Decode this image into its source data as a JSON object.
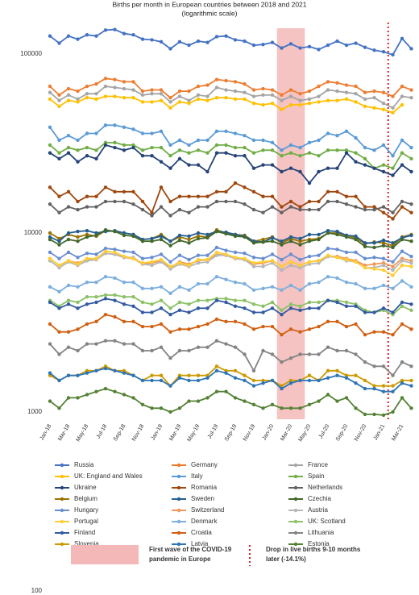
{
  "chart_data": {
    "type": "line",
    "title": "Births per month in European countries between 2018 and 2021",
    "subtitle": "(logarithmic scale)",
    "log_scale": true,
    "ylim": [
      100,
      140000
    ],
    "yticks": [
      100,
      1000,
      10000,
      100000
    ],
    "categories": [
      "Jan-18",
      null,
      "Mar-18",
      null,
      "May-18",
      null,
      "Jul-18",
      null,
      "Sep-18",
      null,
      "Nov-18",
      null,
      "Jan-19",
      null,
      "Mar-19",
      null,
      "May-19",
      null,
      "Jul-19",
      null,
      "Sep-19",
      null,
      "Nov-19",
      null,
      "Jan-20",
      null,
      "Mar-20",
      null,
      "May-20",
      null,
      "Jul-20",
      null,
      "Sep-20",
      null,
      "Nov-20",
      null,
      "Jan-21",
      null,
      "Mar-21",
      null
    ],
    "highlight_label": [
      "First wave of the COVID-19",
      "pandemic in Europe"
    ],
    "marker_label": [
      "Drop in live births 9-10 months",
      "later (-14.1%)"
    ],
    "highlight_color": "#f4b8b8",
    "marker_color": "#d62020",
    "series": [
      {
        "name": "Russia",
        "color": "#4472c4",
        "values": [
          126000,
          115000,
          126000,
          121000,
          128000,
          126000,
          136000,
          137000,
          130000,
          128000,
          121000,
          120000,
          117000,
          107000,
          117000,
          112000,
          118000,
          116000,
          125000,
          126000,
          120000,
          118000,
          112000,
          113000,
          116000,
          108000,
          114000,
          108000,
          110000,
          106000,
          112000,
          118000,
          112000,
          115000,
          109000,
          105000,
          103000,
          99000,
          122000,
          107000
        ]
      },
      {
        "name": "Germany",
        "color": "#ed7d31",
        "values": [
          66000,
          59000,
          64000,
          62000,
          66000,
          68000,
          73000,
          72000,
          70000,
          70000,
          62000,
          63000,
          63000,
          57000,
          62000,
          62000,
          66000,
          67000,
          72000,
          71000,
          70000,
          68000,
          63000,
          64000,
          63000,
          59000,
          63000,
          60000,
          62000,
          66000,
          70000,
          69000,
          67000,
          66000,
          61000,
          62000,
          61000,
          58000,
          66000,
          63000
        ]
      },
      {
        "name": "France",
        "color": "#a5a5a5",
        "values": [
          61000,
          55000,
          59000,
          56000,
          60000,
          60000,
          66000,
          65000,
          64000,
          63000,
          59000,
          60000,
          60000,
          54000,
          58000,
          55000,
          59000,
          58000,
          65000,
          63000,
          62000,
          61000,
          58000,
          59000,
          59000,
          55000,
          58000,
          55000,
          56000,
          58000,
          63000,
          62000,
          61000,
          60000,
          56000,
          57000,
          53000,
          50000,
          58000,
          57000
        ]
      },
      {
        "name": "UK: England and Wales",
        "color": "#ffc000",
        "values": [
          56000,
          51000,
          55000,
          54000,
          57000,
          56000,
          58000,
          58000,
          57000,
          57000,
          54000,
          54000,
          55000,
          50000,
          54000,
          53000,
          56000,
          55000,
          57000,
          57000,
          56000,
          56000,
          53000,
          52000,
          53000,
          49000,
          52000,
          52000,
          53000,
          54000,
          55000,
          55000,
          56000,
          54000,
          51000,
          50000,
          49000,
          47000,
          52000,
          null
        ]
      },
      {
        "name": "Italy",
        "color": "#5b9bd5",
        "values": [
          39000,
          33000,
          35000,
          33000,
          36000,
          36000,
          40000,
          40000,
          39000,
          38000,
          36000,
          36000,
          37000,
          31000,
          33000,
          31000,
          33000,
          33000,
          37000,
          37000,
          36000,
          35000,
          33000,
          33000,
          32000,
          29000,
          31000,
          30000,
          32000,
          33000,
          36000,
          35000,
          37000,
          34000,
          30000,
          29000,
          31000,
          27000,
          33000,
          30000
        ]
      },
      {
        "name": "Spain",
        "color": "#70ad47",
        "values": [
          31000,
          28000,
          30000,
          29000,
          30000,
          29000,
          32000,
          32000,
          31000,
          31000,
          29000,
          30000,
          30000,
          27000,
          29000,
          28000,
          29000,
          28000,
          31000,
          31000,
          30000,
          30000,
          28000,
          29000,
          29000,
          27000,
          28000,
          27000,
          28000,
          27000,
          29000,
          29000,
          29000,
          28000,
          26000,
          23000,
          24000,
          23000,
          28000,
          26000
        ]
      },
      {
        "name": "Ukraine",
        "color": "#264478",
        "values": [
          28000,
          26000,
          28000,
          25000,
          27000,
          26000,
          31000,
          30000,
          29000,
          30000,
          27000,
          27000,
          25000,
          23000,
          26000,
          24000,
          24000,
          22000,
          28000,
          28000,
          27000,
          27000,
          23000,
          24000,
          24000,
          22000,
          23000,
          22000,
          19000,
          22000,
          23000,
          23000,
          28000,
          25000,
          24000,
          23000,
          22000,
          21000,
          24000,
          22000
        ]
      },
      {
        "name": "Romania",
        "color": "#9e480e",
        "values": [
          18000,
          16000,
          17000,
          15000,
          16000,
          16000,
          18000,
          17000,
          17000,
          17000,
          15000,
          13000,
          18000,
          15000,
          16000,
          16000,
          16000,
          16000,
          17000,
          17000,
          19000,
          18000,
          17000,
          16000,
          16000,
          14000,
          15000,
          14000,
          15000,
          15000,
          17000,
          17000,
          16000,
          16000,
          14000,
          14000,
          13000,
          12000,
          14000,
          13000
        ]
      },
      {
        "name": "Netherlands",
        "color": "#636363",
        "values": [
          14500,
          13000,
          14000,
          13500,
          14000,
          14000,
          15000,
          15000,
          15000,
          14500,
          13500,
          12500,
          14000,
          12500,
          13500,
          13000,
          14000,
          14000,
          15000,
          15000,
          15000,
          14500,
          13500,
          13000,
          14000,
          13000,
          14000,
          13500,
          13500,
          13500,
          15000,
          15000,
          14500,
          14000,
          13500,
          13500,
          14000,
          13000,
          15000,
          14500
        ]
      },
      {
        "name": "Belgium",
        "color": "#997300",
        "values": [
          10000,
          9300,
          9800,
          9500,
          9800,
          9600,
          10300,
          10200,
          10000,
          9800,
          9200,
          9300,
          9800,
          9000,
          9500,
          9200,
          9600,
          9500,
          10400,
          10000,
          9800,
          9700,
          9000,
          9200,
          9500,
          8800,
          9300,
          9000,
          9200,
          9300,
          10000,
          10000,
          9700,
          9400,
          8700,
          8900,
          8800,
          8500,
          9500,
          9800
        ]
      },
      {
        "name": "Sweden",
        "color": "#255e91",
        "values": [
          9500,
          9000,
          10000,
          10200,
          10300,
          10000,
          10200,
          10300,
          10000,
          9800,
          9200,
          9300,
          9600,
          9000,
          9700,
          9600,
          10000,
          9800,
          10200,
          10100,
          9800,
          9600,
          9000,
          8900,
          9400,
          9000,
          9500,
          9300,
          9800,
          9800,
          10300,
          10200,
          9700,
          9600,
          8800,
          8800,
          9100,
          8800,
          9400,
          9700
        ]
      },
      {
        "name": "Czechia",
        "color": "#43682b",
        "values": [
          9200,
          8600,
          9200,
          9000,
          9500,
          9700,
          10400,
          10200,
          9700,
          9600,
          9000,
          9000,
          9200,
          8500,
          9100,
          8800,
          9300,
          9400,
          10200,
          9900,
          9600,
          9500,
          8800,
          8900,
          9000,
          8600,
          9000,
          8600,
          9000,
          9200,
          10000,
          9800,
          9500,
          9200,
          8400,
          8300,
          8500,
          8300,
          9200,
          9000
        ]
      },
      {
        "name": "Hungary",
        "color": "#698ed0",
        "values": [
          7800,
          7200,
          7800,
          7300,
          7700,
          7600,
          8200,
          8100,
          7900,
          7800,
          7200,
          7300,
          7600,
          6900,
          7500,
          7100,
          7500,
          7500,
          8300,
          8000,
          7800,
          7700,
          7300,
          7200,
          7600,
          7100,
          7600,
          7100,
          7400,
          7500,
          8200,
          8100,
          7800,
          7800,
          7200,
          7300,
          7200,
          6900,
          7900,
          7400
        ]
      },
      {
        "name": "Switzerland",
        "color": "#f1975a",
        "values": [
          7200,
          6600,
          7000,
          6800,
          7100,
          7200,
          7700,
          7600,
          7300,
          7200,
          6700,
          6800,
          7000,
          6400,
          6900,
          6700,
          7000,
          7100,
          7600,
          7500,
          7200,
          7100,
          6700,
          6800,
          7000,
          6500,
          6900,
          6600,
          6900,
          7000,
          7400,
          7400,
          7200,
          7000,
          6600,
          6700,
          6800,
          6500,
          7200,
          7000
        ]
      },
      {
        "name": "Austria",
        "color": "#b7b7b7",
        "values": [
          7000,
          6400,
          6900,
          6600,
          7000,
          7100,
          7700,
          7600,
          7300,
          7300,
          6700,
          6600,
          6900,
          6300,
          6700,
          6500,
          6800,
          6900,
          7500,
          7500,
          7200,
          7100,
          6500,
          6500,
          6800,
          6200,
          6600,
          6400,
          6700,
          6800,
          7400,
          7300,
          7000,
          6900,
          6400,
          6400,
          6600,
          6200,
          7000,
          6800
        ]
      },
      {
        "name": "Portugal",
        "color": "#ffcd33",
        "values": [
          7200,
          6600,
          7000,
          6700,
          7200,
          7200,
          7900,
          7800,
          7400,
          7200,
          6800,
          6900,
          7100,
          6500,
          6800,
          6600,
          7100,
          7100,
          7800,
          7600,
          7300,
          7200,
          6800,
          6900,
          7000,
          6500,
          6900,
          6600,
          6900,
          7000,
          7500,
          7300,
          7100,
          6900,
          6400,
          6300,
          6200,
          5800,
          6600,
          6500
        ]
      },
      {
        "name": "Denmark",
        "color": "#7cafdd",
        "values": [
          5000,
          4700,
          5100,
          5000,
          5300,
          5300,
          5700,
          5600,
          5300,
          5300,
          4900,
          4900,
          5000,
          4600,
          5000,
          4800,
          5200,
          5200,
          5700,
          5500,
          5300,
          5200,
          4800,
          4900,
          5000,
          4800,
          5100,
          4800,
          5200,
          5300,
          5700,
          5600,
          5300,
          5200,
          4900,
          4900,
          5100,
          4900,
          5400,
          5000
        ]
      },
      {
        "name": "UK: Scotland",
        "color": "#8cc168",
        "values": [
          4200,
          3900,
          4200,
          4100,
          4400,
          4400,
          4500,
          4500,
          4400,
          4400,
          4100,
          4000,
          4200,
          3800,
          4100,
          4000,
          4200,
          4200,
          4300,
          4300,
          4200,
          4200,
          4000,
          3900,
          4100,
          3700,
          4000,
          3900,
          4100,
          4100,
          4200,
          4200,
          4100,
          4000,
          3700,
          3600,
          3700,
          3500,
          3900,
          3700
        ]
      },
      {
        "name": "Finland",
        "color": "#335aa1",
        "values": [
          4100,
          3800,
          4000,
          3800,
          4000,
          4100,
          4300,
          4200,
          4000,
          3900,
          3600,
          3600,
          3800,
          3500,
          3700,
          3600,
          3800,
          3800,
          4200,
          4100,
          3900,
          3800,
          3600,
          3600,
          3800,
          3500,
          3800,
          3700,
          3800,
          3800,
          4200,
          4100,
          3900,
          3900,
          3600,
          3600,
          3800,
          3600,
          4100,
          4000
        ]
      },
      {
        "name": "Croatia",
        "color": "#d26012",
        "values": [
          3100,
          2800,
          2800,
          2900,
          3100,
          3200,
          3500,
          3400,
          3200,
          3200,
          3000,
          3000,
          3100,
          2800,
          2900,
          2900,
          3000,
          3100,
          3300,
          3200,
          3200,
          3100,
          2900,
          3000,
          3000,
          2700,
          2900,
          2800,
          2900,
          3000,
          3200,
          3200,
          3000,
          3100,
          2700,
          2800,
          2800,
          2700,
          3100,
          2900
        ]
      },
      {
        "name": "Lithuania",
        "color": "#848484",
        "values": [
          2400,
          2100,
          2300,
          2200,
          2400,
          2400,
          2500,
          2500,
          2400,
          2400,
          2200,
          2200,
          2300,
          2000,
          2200,
          2200,
          2300,
          2300,
          2500,
          2400,
          2300,
          2100,
          1700,
          2200,
          2100,
          1900,
          2000,
          2100,
          2100,
          2100,
          2300,
          2200,
          2200,
          2100,
          1900,
          1800,
          1800,
          1600,
          1900,
          1800
        ]
      },
      {
        "name": "Slovenia",
        "color": "#cc9a00",
        "values": [
          1600,
          1500,
          1600,
          1600,
          1700,
          1700,
          1800,
          1700,
          1700,
          1600,
          1500,
          1600,
          1600,
          1400,
          1600,
          1600,
          1600,
          1600,
          1800,
          1700,
          1700,
          1600,
          1500,
          1500,
          1500,
          1400,
          1500,
          1500,
          1600,
          1500,
          1700,
          1700,
          1600,
          1600,
          1500,
          1400,
          1400,
          1400,
          1500,
          1500
        ]
      },
      {
        "name": "Latvia",
        "color": "#2e75b6",
        "values": [
          1650,
          1500,
          1600,
          1600,
          1650,
          1700,
          1750,
          1700,
          1650,
          1600,
          1500,
          1500,
          1500,
          1400,
          1550,
          1500,
          1500,
          1550,
          1700,
          1650,
          1550,
          1500,
          1400,
          1450,
          1500,
          1350,
          1450,
          1500,
          1500,
          1500,
          1550,
          1600,
          1550,
          1450,
          1350,
          1350,
          1300,
          1300,
          1450,
          1400
        ]
      },
      {
        "name": "Estonia",
        "color": "#548235",
        "values": [
          1150,
          1050,
          1200,
          1200,
          1250,
          1300,
          1350,
          1300,
          1250,
          1200,
          1100,
          1050,
          1050,
          1000,
          1050,
          1150,
          1150,
          1200,
          1300,
          1300,
          1200,
          1150,
          1100,
          1050,
          1100,
          1050,
          1050,
          1050,
          1100,
          1150,
          1250,
          1150,
          1200,
          1050,
          970,
          970,
          960,
          1000,
          1200,
          1050
        ]
      }
    ]
  }
}
